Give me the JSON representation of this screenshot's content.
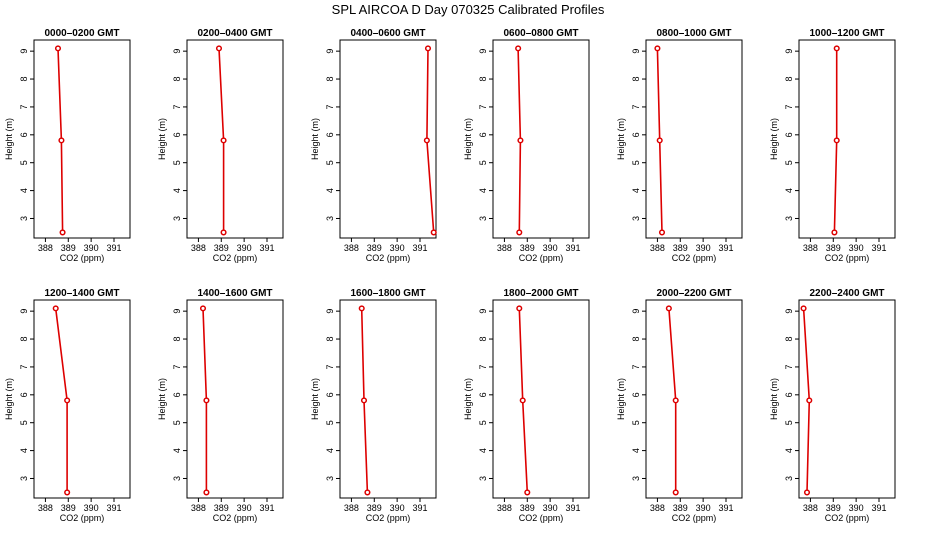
{
  "title": "SPL AIRCOA D  Day 070325  Calibrated Profiles",
  "colors": {
    "series": "#dd0000",
    "axes": "#000000",
    "background": "#ffffff"
  },
  "chart_data": [
    {
      "type": "line",
      "title": "0000–0200 GMT",
      "xlabel": "CO2 (ppm)",
      "ylabel": "Height (m)",
      "xlim": [
        387.5,
        391.7
      ],
      "ylim": [
        2.3,
        9.4
      ],
      "x_ticks": [
        "388",
        "389",
        "390",
        "391"
      ],
      "y_ticks": [
        "3",
        "4",
        "5",
        "6",
        "7",
        "8",
        "9"
      ],
      "x": [
        388.75,
        388.7,
        388.55
      ],
      "y": [
        2.5,
        5.8,
        9.1
      ]
    },
    {
      "type": "line",
      "title": "0200–0400 GMT",
      "xlabel": "CO2 (ppm)",
      "ylabel": "Height (m)",
      "xlim": [
        387.5,
        391.7
      ],
      "ylim": [
        2.3,
        9.4
      ],
      "x_ticks": [
        "388",
        "389",
        "390",
        "391"
      ],
      "y_ticks": [
        "3",
        "4",
        "5",
        "6",
        "7",
        "8",
        "9"
      ],
      "x": [
        389.1,
        389.1,
        388.9
      ],
      "y": [
        2.5,
        5.8,
        9.1
      ]
    },
    {
      "type": "line",
      "title": "0400–0600 GMT",
      "xlabel": "CO2 (ppm)",
      "ylabel": "Height (m)",
      "xlim": [
        387.5,
        391.7
      ],
      "ylim": [
        2.3,
        9.4
      ],
      "x_ticks": [
        "388",
        "389",
        "390",
        "391"
      ],
      "y_ticks": [
        "3",
        "4",
        "5",
        "6",
        "7",
        "8",
        "9"
      ],
      "x": [
        391.6,
        391.3,
        391.35
      ],
      "y": [
        2.5,
        5.8,
        9.1
      ]
    },
    {
      "type": "line",
      "title": "0600–0800 GMT",
      "xlabel": "CO2 (ppm)",
      "ylabel": "Height (m)",
      "xlim": [
        387.5,
        391.7
      ],
      "ylim": [
        2.3,
        9.4
      ],
      "x_ticks": [
        "388",
        "389",
        "390",
        "391"
      ],
      "y_ticks": [
        "3",
        "4",
        "5",
        "6",
        "7",
        "8",
        "9"
      ],
      "x": [
        388.65,
        388.7,
        388.6
      ],
      "y": [
        2.5,
        5.8,
        9.1
      ]
    },
    {
      "type": "line",
      "title": "0800–1000 GMT",
      "xlabel": "CO2 (ppm)",
      "ylabel": "Height (m)",
      "xlim": [
        387.5,
        391.7
      ],
      "ylim": [
        2.3,
        9.4
      ],
      "x_ticks": [
        "388",
        "389",
        "390",
        "391"
      ],
      "y_ticks": [
        "3",
        "4",
        "5",
        "6",
        "7",
        "8",
        "9"
      ],
      "x": [
        388.2,
        388.1,
        388.0
      ],
      "y": [
        2.5,
        5.8,
        9.1
      ]
    },
    {
      "type": "line",
      "title": "1000–1200 GMT",
      "xlabel": "CO2 (ppm)",
      "ylabel": "Height (m)",
      "xlim": [
        387.5,
        391.7
      ],
      "ylim": [
        2.3,
        9.4
      ],
      "x_ticks": [
        "388",
        "389",
        "390",
        "391"
      ],
      "y_ticks": [
        "3",
        "4",
        "5",
        "6",
        "7",
        "8",
        "9"
      ],
      "x": [
        389.05,
        389.15,
        389.15
      ],
      "y": [
        2.5,
        5.8,
        9.1
      ]
    },
    {
      "type": "line",
      "title": "1200–1400 GMT",
      "xlabel": "CO2 (ppm)",
      "ylabel": "Height (m)",
      "xlim": [
        387.5,
        391.7
      ],
      "ylim": [
        2.3,
        9.4
      ],
      "x_ticks": [
        "388",
        "389",
        "390",
        "391"
      ],
      "y_ticks": [
        "3",
        "4",
        "5",
        "6",
        "7",
        "8",
        "9"
      ],
      "x": [
        388.95,
        388.95,
        388.45
      ],
      "y": [
        2.5,
        5.8,
        9.1
      ]
    },
    {
      "type": "line",
      "title": "1400–1600 GMT",
      "xlabel": "CO2 (ppm)",
      "ylabel": "Height (m)",
      "xlim": [
        387.5,
        391.7
      ],
      "ylim": [
        2.3,
        9.4
      ],
      "x_ticks": [
        "388",
        "389",
        "390",
        "391"
      ],
      "y_ticks": [
        "3",
        "4",
        "5",
        "6",
        "7",
        "8",
        "9"
      ],
      "x": [
        388.35,
        388.35,
        388.2
      ],
      "y": [
        2.5,
        5.8,
        9.1
      ]
    },
    {
      "type": "line",
      "title": "1600–1800 GMT",
      "xlabel": "CO2 (ppm)",
      "ylabel": "Height (m)",
      "xlim": [
        387.5,
        391.7
      ],
      "ylim": [
        2.3,
        9.4
      ],
      "x_ticks": [
        "388",
        "389",
        "390",
        "391"
      ],
      "y_ticks": [
        "3",
        "4",
        "5",
        "6",
        "7",
        "8",
        "9"
      ],
      "x": [
        388.7,
        388.55,
        388.45
      ],
      "y": [
        2.5,
        5.8,
        9.1
      ]
    },
    {
      "type": "line",
      "title": "1800–2000 GMT",
      "xlabel": "CO2 (ppm)",
      "ylabel": "Height (m)",
      "xlim": [
        387.5,
        391.7
      ],
      "ylim": [
        2.3,
        9.4
      ],
      "x_ticks": [
        "388",
        "389",
        "390",
        "391"
      ],
      "y_ticks": [
        "3",
        "4",
        "5",
        "6",
        "7",
        "8",
        "9"
      ],
      "x": [
        389.0,
        388.8,
        388.65
      ],
      "y": [
        2.5,
        5.8,
        9.1
      ]
    },
    {
      "type": "line",
      "title": "2000–2200 GMT",
      "xlabel": "CO2 (ppm)",
      "ylabel": "Height (m)",
      "xlim": [
        387.5,
        391.7
      ],
      "ylim": [
        2.3,
        9.4
      ],
      "x_ticks": [
        "388",
        "389",
        "390",
        "391"
      ],
      "y_ticks": [
        "3",
        "4",
        "5",
        "6",
        "7",
        "8",
        "9"
      ],
      "x": [
        388.8,
        388.8,
        388.5
      ],
      "y": [
        2.5,
        5.8,
        9.1
      ]
    },
    {
      "type": "line",
      "title": "2200–2400 GMT",
      "xlabel": "CO2 (ppm)",
      "ylabel": "Height (m)",
      "xlim": [
        387.5,
        391.7
      ],
      "ylim": [
        2.3,
        9.4
      ],
      "x_ticks": [
        "388",
        "389",
        "390",
        "391"
      ],
      "y_ticks": [
        "3",
        "4",
        "5",
        "6",
        "7",
        "8",
        "9"
      ],
      "x": [
        387.85,
        387.95,
        387.7
      ],
      "y": [
        2.5,
        5.8,
        9.1
      ]
    }
  ]
}
